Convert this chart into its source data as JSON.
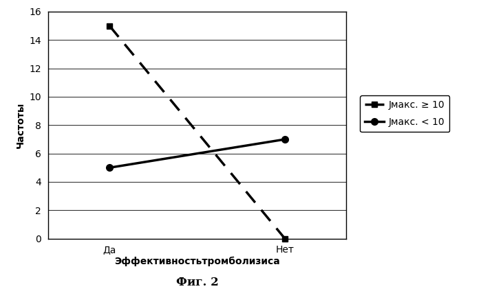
{
  "series": [
    {
      "label": "Jмакс. ≥ 10",
      "x": [
        1,
        3
      ],
      "y": [
        15,
        0
      ],
      "linestyle": "dashed",
      "color": "#000000",
      "marker": "s",
      "linewidth": 2.5,
      "markersize": 6,
      "dashes": [
        6,
        4
      ]
    },
    {
      "label": "Jмакс. < 10",
      "x": [
        1,
        3
      ],
      "y": [
        5,
        7
      ],
      "linestyle": "solid",
      "color": "#000000",
      "marker": "o",
      "linewidth": 2.5,
      "markersize": 7
    }
  ],
  "xtick_positions": [
    1,
    3
  ],
  "xtick_labels": [
    "Да",
    "Нет"
  ],
  "xlabel": "Эффективностьтромболизиса",
  "ylabel": "Частоты",
  "xlim": [
    0.3,
    3.7
  ],
  "ylim": [
    0,
    16
  ],
  "yticks": [
    0,
    2,
    4,
    6,
    8,
    10,
    12,
    14,
    16
  ],
  "caption": "Фиг. 2",
  "background_color": "#ffffff",
  "axis_fontsize": 10,
  "legend_fontsize": 10,
  "caption_fontsize": 12
}
